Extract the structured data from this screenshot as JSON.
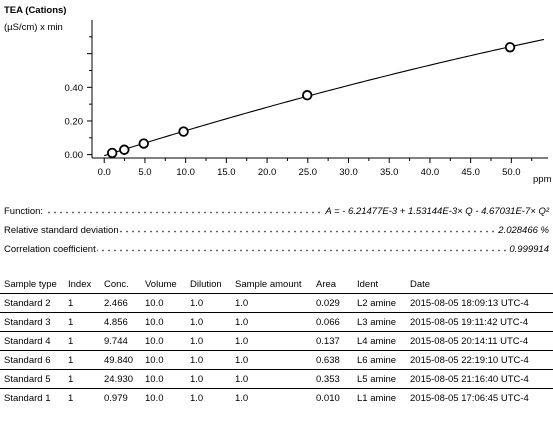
{
  "chart_data": {
    "type": "line",
    "title": "TEA (Cations)",
    "ylabel": "(µS/cm) x min",
    "xlabel": "ppm",
    "xlim": [
      -1.5,
      54.5
    ],
    "ylim": [
      -0.02,
      0.8
    ],
    "x_ticks": [
      "0.0",
      "5.0",
      "10.0",
      "15.0",
      "20.0",
      "25.0",
      "30.0",
      "35.0",
      "40.0",
      "45.0",
      "50.0"
    ],
    "y_ticks": [
      "0.00",
      "0.20",
      "0.40"
    ],
    "grid": false,
    "series": [
      {
        "marker": "open-circle",
        "points": [
          {
            "x": 0.979,
            "y": 0.01
          },
          {
            "x": 2.466,
            "y": 0.029
          },
          {
            "x": 4.856,
            "y": 0.066
          },
          {
            "x": 9.744,
            "y": 0.137
          },
          {
            "x": 24.93,
            "y": 0.353
          },
          {
            "x": 49.84,
            "y": 0.638
          }
        ]
      }
    ],
    "fit": {
      "a0": -0.00621477,
      "a1": 0.0153144,
      "a2": -4.67031e-05
    }
  },
  "stats": {
    "function_label": "Function:",
    "function_value": "A =  - 6.21477E-3 + 1.53144E-3× Q - 4.67031E-7× Q²",
    "rsd_label": "Relative standard deviation",
    "rsd_value": "2.028466 %",
    "corr_label": "Correlation coefficient",
    "corr_value": "0.999914"
  },
  "table": {
    "headers": [
      "Sample type",
      "Index",
      "Conc.",
      "Volume",
      "Dilution",
      "Sample amount",
      "Area",
      "Ident",
      "Date"
    ],
    "rows": [
      [
        "Standard 2",
        "1",
        "2.466",
        "10.0",
        "1.0",
        "1.0",
        "0.029",
        "L2 amine",
        "2015-08-05 18:09:13 UTC-4"
      ],
      [
        "Standard 3",
        "1",
        "4.856",
        "10.0",
        "1.0",
        "1.0",
        "0.066",
        "L3 amine",
        "2015-08-05 19:11:42 UTC-4"
      ],
      [
        "Standard 4",
        "1",
        "9.744",
        "10.0",
        "1.0",
        "1.0",
        "0.137",
        "L4 amine",
        "2015-08-05 20:14:11 UTC-4"
      ],
      [
        "Standard 6",
        "1",
        "49.840",
        "10.0",
        "1.0",
        "1.0",
        "0.638",
        "L6 amine",
        "2015-08-05 22:19:10 UTC-4"
      ],
      [
        "Standard 5",
        "1",
        "24.930",
        "10.0",
        "1.0",
        "1.0",
        "0.353",
        "L5 amine",
        "2015-08-05 21:16:40 UTC-4"
      ],
      [
        "Standard 1",
        "1",
        "0.979",
        "10.0",
        "1.0",
        "1.0",
        "0.010",
        "L1 amine",
        "2015-08-05 17:06:45 UTC-4"
      ]
    ]
  }
}
